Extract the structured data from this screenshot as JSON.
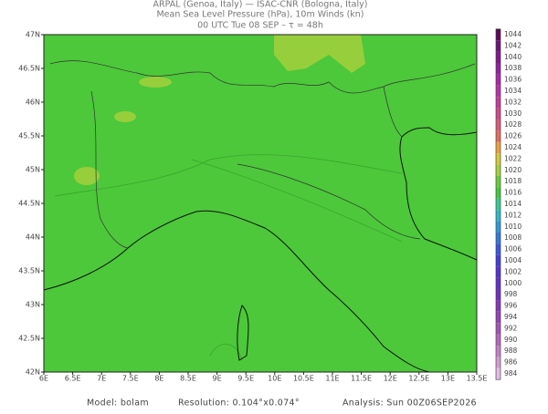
{
  "header": {
    "line1": "ARPAL (Genoa, Italy)  —  ISAC-CNR (Bologna, Italy)",
    "line2": "Mean Sea Level Pressure (hPa), 10m Winds (kn)",
    "line3": "00 UTC Tue 08 SEP  –  τ = 48h"
  },
  "map": {
    "lat_labels": [
      "47N",
      "46.5N",
      "46N",
      "45.5N",
      "45N",
      "44.5N",
      "44N",
      "43.5N",
      "43N",
      "42.5N",
      "42N"
    ],
    "lon_labels": [
      "6E",
      "6.5E",
      "7E",
      "7.5E",
      "8E",
      "8.5E",
      "9E",
      "9.5E",
      "10E",
      "10.5E",
      "11E",
      "11.5E",
      "12E",
      "12.5E",
      "13E",
      "13.5E"
    ]
  },
  "colorbar": {
    "labels": [
      "1044",
      "1042",
      "1040",
      "1038",
      "1036",
      "1034",
      "1032",
      "1030",
      "1028",
      "1026",
      "1024",
      "1022",
      "1020",
      "1018",
      "1016",
      "1014",
      "1012",
      "1010",
      "1008",
      "1006",
      "1004",
      "1002",
      "1000",
      "998",
      "996",
      "994",
      "992",
      "990",
      "988",
      "986",
      "984"
    ],
    "colors": [
      "#5a0a5a",
      "#6e127a",
      "#82188e",
      "#9620a0",
      "#a828a8",
      "#b832a8",
      "#c43c9c",
      "#d04a8c",
      "#dc5a78",
      "#e46c5e",
      "#eaa040",
      "#d8c83a",
      "#a0d43c",
      "#6ccc3a",
      "#44c83e",
      "#38c894",
      "#30b8c8",
      "#3098d8",
      "#3478e0",
      "#3a58e0",
      "#4440d8",
      "#5434d0",
      "#6430c8",
      "#7430c0",
      "#8438b8",
      "#9444b4",
      "#a454b4",
      "#b468bc",
      "#c480c8",
      "#d49cd4",
      "#e4bce4"
    ]
  },
  "footer": {
    "model": "Model: bolam",
    "resolution": "Resolution: 0.104°x0.074°",
    "analysis": "Analysis: Sun 00Z06SEP2026"
  }
}
